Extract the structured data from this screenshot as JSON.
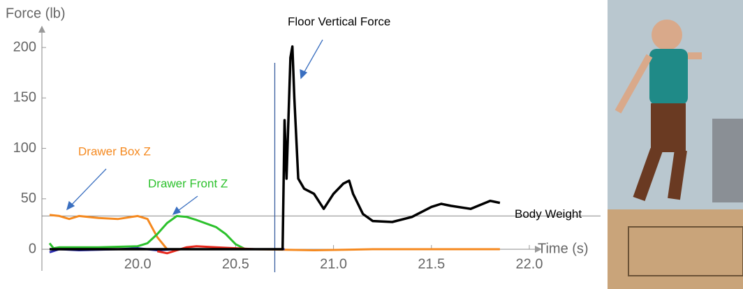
{
  "chart_data": {
    "type": "line",
    "ylabel": "Force (lb)",
    "xlabel": "Time (s)",
    "xlim": [
      19.5,
      22.0
    ],
    "ylim": [
      -10,
      212
    ],
    "xticks": [
      {
        "value": 20.0,
        "label": "20.0"
      },
      {
        "value": 20.5,
        "label": "20.5"
      },
      {
        "value": 21.0,
        "label": "21.0"
      },
      {
        "value": 21.5,
        "label": "21.5"
      },
      {
        "value": 22.0,
        "label": "22.0"
      }
    ],
    "yticks": [
      0,
      50,
      100,
      150,
      200
    ],
    "hline": {
      "value": 33,
      "label": "Body Weight",
      "color": "#888888"
    },
    "vline": {
      "value": 20.7,
      "color": "#3a5fa0"
    },
    "series": [
      {
        "name": "Drawer Box Z",
        "color": "#f5891f",
        "x": [
          19.55,
          19.6,
          19.65,
          19.7,
          19.8,
          19.9,
          20.0,
          20.05,
          20.1,
          20.15,
          20.3,
          20.6,
          20.9,
          21.2,
          21.5,
          21.85
        ],
        "values": [
          34,
          33,
          30,
          33,
          31,
          30,
          33,
          30,
          12,
          0,
          0,
          0,
          -1,
          0,
          0,
          0
        ]
      },
      {
        "name": "Drawer Front Z",
        "color": "#2cc12c",
        "x": [
          19.55,
          19.57,
          19.6,
          19.8,
          20.0,
          20.05,
          20.1,
          20.15,
          20.2,
          20.25,
          20.3,
          20.4,
          20.45,
          20.5,
          20.55
        ],
        "values": [
          6,
          1,
          2,
          2,
          3,
          6,
          15,
          26,
          33,
          32,
          29,
          22,
          15,
          5,
          0
        ]
      },
      {
        "color": "#2a2ab0",
        "x": [
          19.55,
          19.6,
          19.7,
          19.9,
          20.0,
          20.1,
          20.2,
          20.5,
          20.75
        ],
        "values": [
          -3,
          0,
          -1,
          0,
          1,
          -1,
          0,
          0,
          0
        ]
      },
      {
        "color": "#e8281c",
        "x": [
          20.1,
          20.15,
          20.2,
          20.25,
          20.3,
          20.4,
          20.5,
          20.6
        ],
        "values": [
          -2,
          -4,
          -1,
          2,
          3,
          2,
          1,
          0
        ]
      },
      {
        "name": "Floor Vertical Force",
        "color": "#000000",
        "x": [
          19.55,
          20.0,
          20.5,
          20.74,
          20.75,
          20.76,
          20.77,
          20.78,
          20.79,
          20.8,
          20.82,
          20.85,
          20.9,
          20.95,
          21.0,
          21.05,
          21.08,
          21.1,
          21.15,
          21.2,
          21.3,
          21.4,
          21.5,
          21.55,
          21.6,
          21.7,
          21.8,
          21.85
        ],
        "values": [
          0,
          0,
          0,
          0,
          128,
          70,
          130,
          190,
          201,
          150,
          70,
          60,
          55,
          40,
          55,
          65,
          68,
          55,
          35,
          28,
          27,
          32,
          42,
          45,
          43,
          40,
          48,
          46
        ]
      }
    ]
  }
}
